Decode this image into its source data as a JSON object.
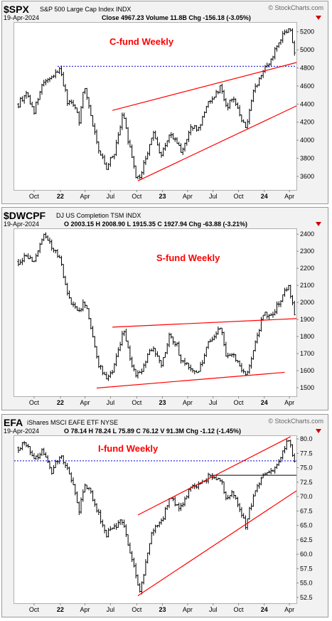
{
  "panels": [
    {
      "symbol": "$SPX",
      "name": "S&P 500 Large Cap Index",
      "exchange": "INDX",
      "watermark": "© StockCharts.com",
      "date": "19-Apr-2024",
      "quote": "Close 4967.23  Volume 11.8B  Chg -156.18 (-3.05%)",
      "annotation": "C-fund Weekly"
    },
    {
      "symbol": "$DWCPF",
      "name": "DJ US Completion TSM",
      "exchange": "INDX",
      "watermark": "",
      "date": "19-Apr-2024",
      "quote": "O 2003.15  H 2008.90  L 1915.35  C 1927.94  Chg -63.88 (-3.21%)",
      "annotation": "S-fund Weekly"
    },
    {
      "symbol": "EFA",
      "name": "iShares MSCI EAFE ETF",
      "exchange": "NYSE",
      "watermark": "© StockCharts.com",
      "date": "19-Apr-2024",
      "quote": "O 78.14  H 78.24  L 75.89  C 76.12  V 91.3M  Chg -1.12 (-1.45%)",
      "annotation": "I-fund Weekly"
    }
  ],
  "colors": {
    "price_bars": "#000000",
    "trendline": "#ff0000",
    "dashed_level": "#0000cc",
    "annotation": "#ff0000",
    "down_arrow": "#cc0000",
    "frame": "#888888"
  },
  "chart_data": [
    {
      "type": "line",
      "style": "weekly price bars",
      "x_ticks": [
        "Oct",
        "22",
        "Apr",
        "Jul",
        "Oct",
        "23",
        "Apr",
        "Jul",
        "Oct",
        "24",
        "Apr"
      ],
      "y_ticks": [
        3600,
        3800,
        4000,
        4200,
        4400,
        4600,
        4800,
        5000,
        5200
      ],
      "ylim": [
        3450,
        5300
      ],
      "x": [
        "2021-08-06",
        "2021-09-03",
        "2021-10-01",
        "2021-10-29",
        "2021-12-03",
        "2022-01-03",
        "2022-01-28",
        "2022-02-25",
        "2022-03-11",
        "2022-03-29",
        "2022-04-22",
        "2022-05-20",
        "2022-06-17",
        "2022-07-15",
        "2022-08-16",
        "2022-09-02",
        "2022-09-30",
        "2022-10-14",
        "2022-11-04",
        "2022-11-30",
        "2022-12-30",
        "2023-01-27",
        "2023-02-24",
        "2023-03-10",
        "2023-04-14",
        "2023-05-12",
        "2023-06-16",
        "2023-07-31",
        "2023-08-18",
        "2023-09-15",
        "2023-10-27",
        "2023-11-24",
        "2023-12-29",
        "2024-01-26",
        "2024-02-23",
        "2024-03-28",
        "2024-04-05",
        "2024-04-19"
      ],
      "y": [
        4400,
        4530,
        4320,
        4600,
        4700,
        4790,
        4430,
        4380,
        4200,
        4620,
        4280,
        3900,
        3680,
        3870,
        4300,
        4000,
        3600,
        3580,
        3800,
        4080,
        3830,
        4070,
        3970,
        3860,
        4130,
        4130,
        4420,
        4590,
        4360,
        4460,
        4120,
        4560,
        4770,
        4890,
        5090,
        5250,
        5200,
        4967.23
      ],
      "overlays": [
        {
          "kind": "dashed horizontal",
          "value": 4818
        },
        {
          "kind": "trendline",
          "from": [
            "2022-07-08",
            4330
          ],
          "to": [
            "2024-04-26",
            4860
          ]
        },
        {
          "kind": "trendline",
          "from": [
            "2022-10-07",
            3550
          ],
          "to": [
            "2024-04-26",
            4380
          ]
        }
      ]
    },
    {
      "type": "line",
      "style": "weekly price bars",
      "x_ticks": [
        "Oct",
        "22",
        "Apr",
        "Jul",
        "Oct",
        "23",
        "Apr",
        "Jul",
        "Oct",
        "24",
        "Apr"
      ],
      "y_ticks": [
        1500,
        1600,
        1700,
        1800,
        1900,
        2000,
        2100,
        2200,
        2300,
        2400
      ],
      "ylim": [
        1450,
        2430
      ],
      "x": [
        "2021-08-06",
        "2021-09-03",
        "2021-10-01",
        "2021-11-05",
        "2021-11-26",
        "2022-01-03",
        "2022-01-28",
        "2022-02-25",
        "2022-03-11",
        "2022-03-29",
        "2022-04-22",
        "2022-05-20",
        "2022-06-17",
        "2022-07-15",
        "2022-08-16",
        "2022-09-02",
        "2022-09-30",
        "2022-10-21",
        "2022-11-11",
        "2022-11-30",
        "2022-12-30",
        "2023-01-27",
        "2023-02-24",
        "2023-03-10",
        "2023-04-14",
        "2023-05-12",
        "2023-06-16",
        "2023-07-31",
        "2023-08-18",
        "2023-09-15",
        "2023-10-27",
        "2023-11-24",
        "2023-12-29",
        "2024-01-26",
        "2024-02-23",
        "2024-03-28",
        "2024-04-05",
        "2024-04-19"
      ],
      "y": [
        2240,
        2280,
        2230,
        2390,
        2340,
        2260,
        2040,
        1960,
        1940,
        2020,
        1850,
        1640,
        1560,
        1620,
        1840,
        1720,
        1560,
        1600,
        1700,
        1740,
        1640,
        1800,
        1760,
        1650,
        1620,
        1590,
        1760,
        1850,
        1700,
        1700,
        1560,
        1720,
        1940,
        1920,
        2000,
        2090,
        2040,
        1927.94
      ],
      "overlays": [
        {
          "kind": "trendline",
          "from": [
            "2022-07-08",
            1855
          ],
          "to": [
            "2024-04-26",
            1905
          ]
        },
        {
          "kind": "trendline",
          "from": [
            "2022-05-13",
            1498
          ],
          "to": [
            "2024-03-15",
            1590
          ]
        }
      ]
    },
    {
      "type": "line",
      "style": "weekly price bars",
      "x_ticks": [
        "Oct",
        "22",
        "Apr",
        "Jul",
        "Oct",
        "23",
        "Apr",
        "Jul",
        "Oct",
        "24",
        "Apr"
      ],
      "y_ticks": [
        52.5,
        55.0,
        57.5,
        60.0,
        62.5,
        65.0,
        67.5,
        70.0,
        72.5,
        75.0,
        77.5,
        80.0
      ],
      "ylim": [
        51.5,
        80.5
      ],
      "x": [
        "2021-08-06",
        "2021-09-03",
        "2021-10-01",
        "2021-10-29",
        "2021-12-03",
        "2022-01-03",
        "2022-01-28",
        "2022-02-25",
        "2022-03-11",
        "2022-03-29",
        "2022-04-22",
        "2022-05-20",
        "2022-06-17",
        "2022-07-15",
        "2022-08-16",
        "2022-09-02",
        "2022-09-30",
        "2022-10-14",
        "2022-11-04",
        "2022-11-30",
        "2022-12-30",
        "2023-01-27",
        "2023-02-24",
        "2023-03-10",
        "2023-04-14",
        "2023-05-12",
        "2023-06-16",
        "2023-07-31",
        "2023-08-18",
        "2023-09-15",
        "2023-10-27",
        "2023-11-24",
        "2023-12-29",
        "2024-01-26",
        "2024-02-23",
        "2024-03-28",
        "2024-04-05",
        "2024-04-19"
      ],
      "y": [
        78.5,
        79.2,
        76.5,
        77.8,
        74.5,
        77.5,
        74.8,
        70.5,
        67.5,
        72,
        70.8,
        67,
        63.5,
        64.5,
        66,
        61.5,
        56.5,
        53.5,
        58.5,
        64.5,
        65.5,
        69.8,
        68.5,
        68,
        71.5,
        72,
        73.5,
        72.8,
        70,
        70.5,
        65,
        70,
        73.5,
        74.2,
        76.5,
        79.8,
        78.5,
        76.12
      ],
      "overlays": [
        {
          "kind": "dashed horizontal",
          "value": 76.2
        },
        {
          "kind": "solid horizontal",
          "value": 73.7,
          "from": "2023-06-30",
          "to": "2024-04-26"
        },
        {
          "kind": "trendline",
          "from": [
            "2022-10-07",
            66.8
          ],
          "to": [
            "2024-04-05",
            80.4
          ]
        },
        {
          "kind": "trendline",
          "from": [
            "2022-10-07",
            52.8
          ],
          "to": [
            "2024-04-26",
            71.0
          ]
        }
      ]
    }
  ]
}
